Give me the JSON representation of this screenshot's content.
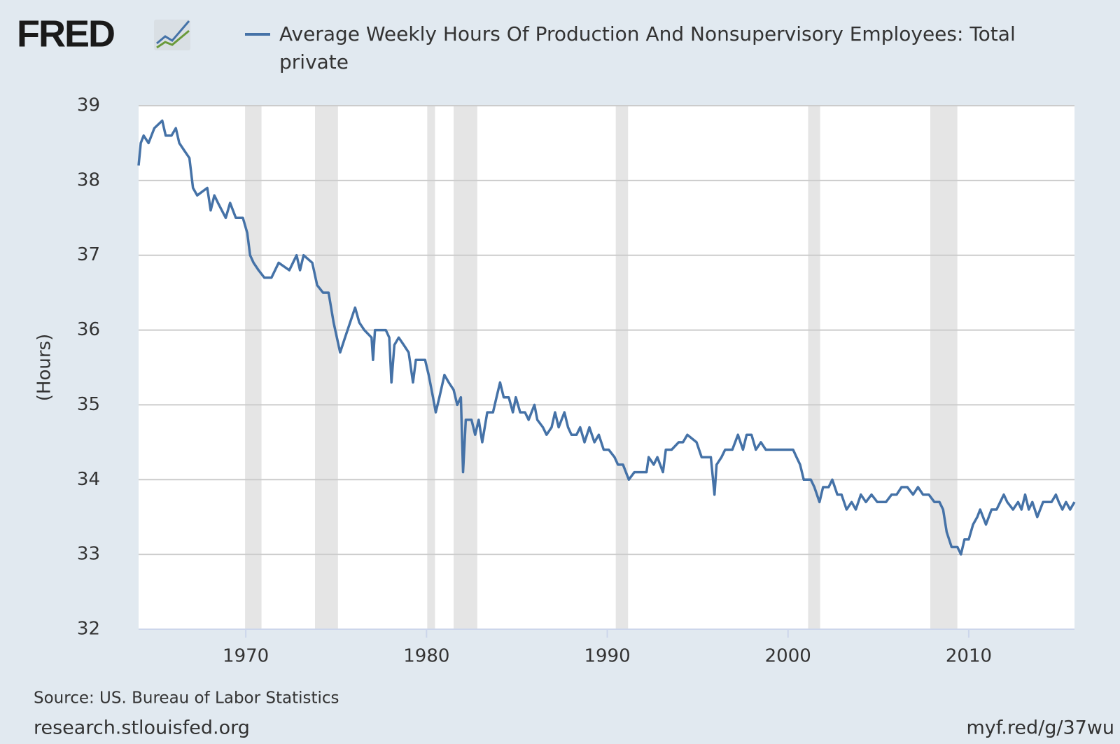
{
  "chart_data": {
    "type": "line",
    "logo": "FRED",
    "y_label": "(Hours)",
    "source": "Source: US. Bureau of Labor Statistics",
    "footer_left": "research.stlouisfed.org",
    "footer_right": "myf.red/g/37wu",
    "xlim": [
      1964.07,
      2015.85
    ],
    "xticks": [
      1970,
      1980,
      1990,
      2000,
      2010
    ],
    "ylim": [
      32,
      39
    ],
    "yticks": [
      32,
      33,
      34,
      35,
      36,
      37,
      38,
      39
    ],
    "grid": true,
    "recession_color": "#e5e5e5",
    "recessions": [
      [
        1969.96,
        1970.87
      ],
      [
        1973.83,
        1975.1
      ],
      [
        1980.04,
        1980.47
      ],
      [
        1981.5,
        1982.81
      ],
      [
        1990.47,
        1991.15
      ],
      [
        2001.11,
        2001.78
      ],
      [
        2007.87,
        2009.37
      ]
    ],
    "x": [
      1964.07,
      1964.19,
      1964.35,
      1964.62,
      1964.94,
      1965.38,
      1965.57,
      1965.89,
      1966.13,
      1966.32,
      1966.6,
      1966.88,
      1967.08,
      1967.31,
      1967.87,
      1968.06,
      1968.26,
      1968.46,
      1968.89,
      1969.13,
      1969.45,
      1969.84,
      1970.08,
      1970.24,
      1970.43,
      1970.71,
      1971.03,
      1971.42,
      1971.82,
      1972.41,
      1972.81,
      1973.0,
      1973.2,
      1973.68,
      1973.95,
      1974.27,
      1974.58,
      1974.86,
      1975.22,
      1975.49,
      1975.77,
      1976.05,
      1976.28,
      1976.56,
      1976.96,
      1977.04,
      1977.15,
      1977.75,
      1977.94,
      1978.06,
      1978.22,
      1978.46,
      1978.74,
      1979.01,
      1979.25,
      1979.41,
      1979.92,
      1980.12,
      1980.36,
      1980.51,
      1980.71,
      1980.99,
      1981.23,
      1981.5,
      1981.7,
      1981.9,
      1982.02,
      1982.17,
      1982.49,
      1982.69,
      1982.89,
      1983.08,
      1983.36,
      1983.68,
      1983.87,
      1984.07,
      1984.27,
      1984.55,
      1984.78,
      1984.94,
      1985.18,
      1985.45,
      1985.65,
      1985.97,
      1986.13,
      1986.44,
      1986.64,
      1986.92,
      1987.11,
      1987.31,
      1987.63,
      1987.83,
      1988.02,
      1988.3,
      1988.5,
      1988.74,
      1989.01,
      1989.29,
      1989.53,
      1989.8,
      1990.08,
      1990.4,
      1990.59,
      1990.87,
      1991.19,
      1991.5,
      1992.17,
      1992.29,
      1992.57,
      1992.77,
      1993.08,
      1993.24,
      1993.56,
      1993.95,
      1994.19,
      1994.43,
      1994.94,
      1995.22,
      1995.73,
      1995.93,
      1996.05,
      1996.32,
      1996.52,
      1996.92,
      1997.23,
      1997.51,
      1997.71,
      1997.98,
      1998.22,
      1998.5,
      1998.77,
      1999.09,
      1999.49,
      1999.88,
      2000.28,
      2000.47,
      2000.67,
      2000.87,
      2001.26,
      2001.46,
      2001.74,
      2001.94,
      2002.25,
      2002.45,
      2002.73,
      2002.96,
      2003.24,
      2003.52,
      2003.75,
      2004.03,
      2004.31,
      2004.62,
      2004.94,
      2005.42,
      2005.73,
      2006.01,
      2006.28,
      2006.6,
      2006.92,
      2007.19,
      2007.47,
      2007.79,
      2008.1,
      2008.38,
      2008.58,
      2008.78,
      2009.05,
      2009.37,
      2009.57,
      2009.76,
      2010.0,
      2010.24,
      2010.47,
      2010.63,
      2010.95,
      2011.26,
      2011.54,
      2011.74,
      2011.94,
      2012.13,
      2012.45,
      2012.73,
      2012.92,
      2013.12,
      2013.32,
      2013.52,
      2013.79,
      2014.11,
      2014.58,
      2014.82,
      2014.98,
      2015.18,
      2015.38,
      2015.61,
      2015.85
    ],
    "series": [
      {
        "name": "Average Weekly Hours Of Production And Nonsupervisory Employees: Total private",
        "color": "#4572a7",
        "values": [
          38.2,
          38.5,
          38.6,
          38.5,
          38.7,
          38.8,
          38.6,
          38.6,
          38.7,
          38.5,
          38.4,
          38.3,
          37.9,
          37.8,
          37.9,
          37.6,
          37.8,
          37.7,
          37.5,
          37.7,
          37.5,
          37.5,
          37.3,
          37.0,
          36.9,
          36.8,
          36.7,
          36.7,
          36.9,
          36.8,
          37.0,
          36.8,
          37.0,
          36.9,
          36.6,
          36.5,
          36.5,
          36.1,
          35.7,
          35.9,
          36.1,
          36.3,
          36.1,
          36.0,
          35.9,
          35.6,
          36.0,
          36.0,
          35.9,
          35.3,
          35.8,
          35.9,
          35.8,
          35.7,
          35.3,
          35.6,
          35.6,
          35.4,
          35.1,
          34.9,
          35.1,
          35.4,
          35.3,
          35.2,
          35.0,
          35.1,
          34.1,
          34.8,
          34.8,
          34.6,
          34.8,
          34.5,
          34.9,
          34.9,
          35.1,
          35.3,
          35.1,
          35.1,
          34.9,
          35.1,
          34.9,
          34.9,
          34.8,
          35.0,
          34.8,
          34.7,
          34.6,
          34.7,
          34.9,
          34.7,
          34.9,
          34.7,
          34.6,
          34.6,
          34.7,
          34.5,
          34.7,
          34.5,
          34.6,
          34.4,
          34.4,
          34.3,
          34.2,
          34.2,
          34.0,
          34.1,
          34.1,
          34.3,
          34.2,
          34.3,
          34.1,
          34.4,
          34.4,
          34.5,
          34.5,
          34.6,
          34.5,
          34.3,
          34.3,
          33.8,
          34.2,
          34.3,
          34.4,
          34.4,
          34.6,
          34.4,
          34.6,
          34.6,
          34.4,
          34.5,
          34.4,
          34.4,
          34.4,
          34.4,
          34.4,
          34.3,
          34.2,
          34.0,
          34.0,
          33.9,
          33.7,
          33.9,
          33.9,
          34.0,
          33.8,
          33.8,
          33.6,
          33.7,
          33.6,
          33.8,
          33.7,
          33.8,
          33.7,
          33.7,
          33.8,
          33.8,
          33.9,
          33.9,
          33.8,
          33.9,
          33.8,
          33.8,
          33.7,
          33.7,
          33.6,
          33.3,
          33.1,
          33.1,
          33.0,
          33.2,
          33.2,
          33.4,
          33.5,
          33.6,
          33.4,
          33.6,
          33.6,
          33.7,
          33.8,
          33.7,
          33.6,
          33.7,
          33.6,
          33.8,
          33.6,
          33.7,
          33.5,
          33.7,
          33.7,
          33.8,
          33.7,
          33.6,
          33.7,
          33.6,
          33.7
        ]
      }
    ]
  }
}
